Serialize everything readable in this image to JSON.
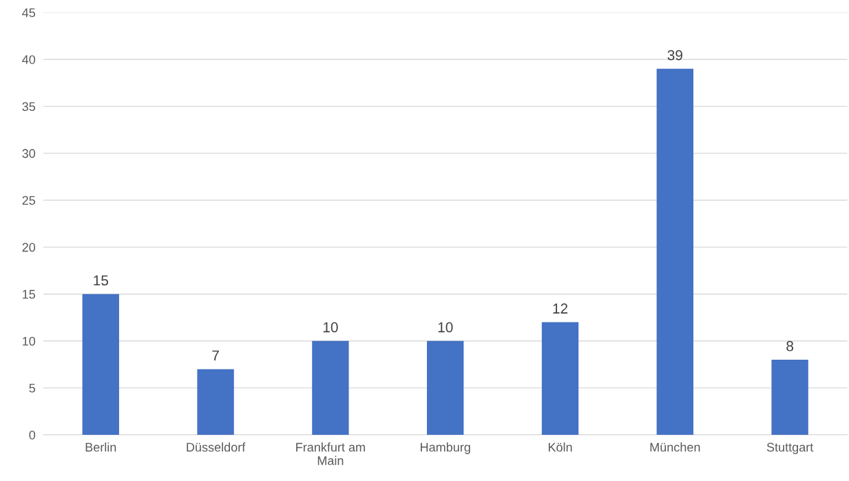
{
  "chart_data": {
    "type": "bar",
    "categories": [
      "Berlin",
      "Düsseldorf",
      "Frankfurt am Main",
      "Hamburg",
      "Köln",
      "München",
      "Stuttgart"
    ],
    "values": [
      15,
      7,
      10,
      10,
      12,
      39,
      8
    ],
    "color": "#4472c4",
    "ylim": [
      0,
      45
    ],
    "yticks": [
      0,
      5,
      10,
      15,
      20,
      25,
      30,
      35,
      40,
      45
    ],
    "grid": "y",
    "data_labels": true
  }
}
